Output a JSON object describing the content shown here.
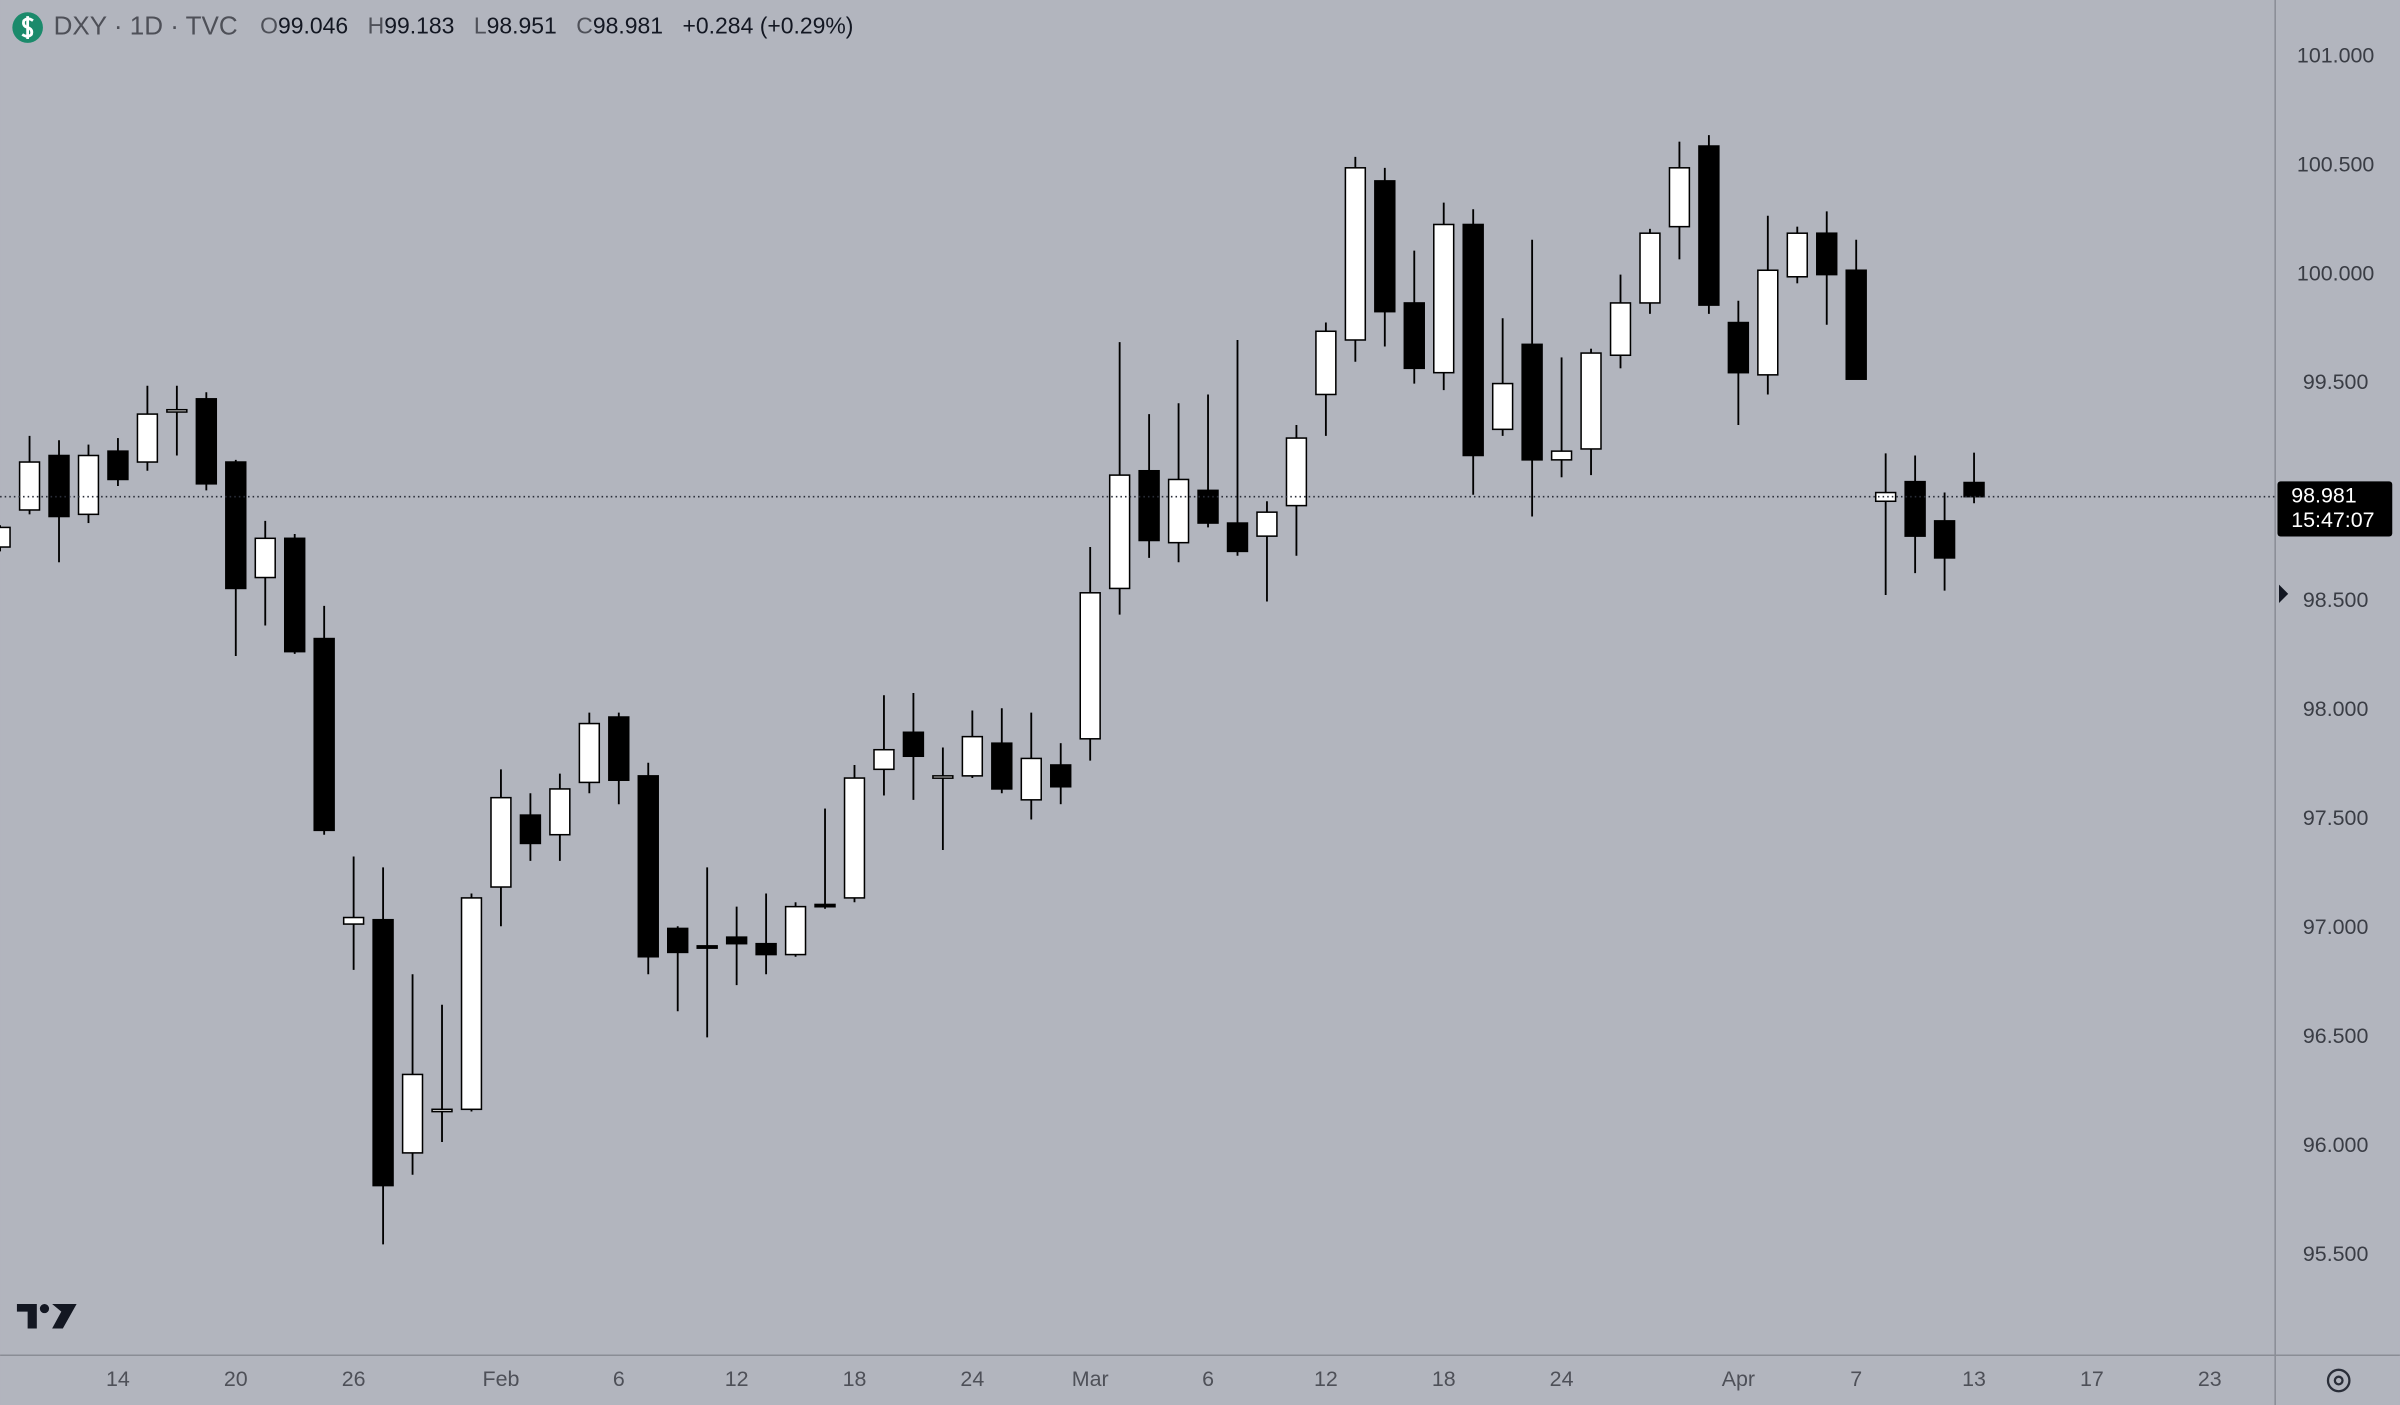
{
  "chart_data": {
    "type": "candlestick",
    "header": "DXY · 1D · TVC",
    "ohlc_labels": [
      "O",
      "H",
      "L",
      "C"
    ],
    "change": "+0.284 (+0.29%)",
    "countdown": "15:47:07",
    "up_color": "#ffffff",
    "down_color": "#000000",
    "wick_color": "#000000",
    "grid": false,
    "categories": [
      null,
      null,
      null,
      null,
      "14",
      null,
      null,
      null,
      "20",
      null,
      null,
      null,
      "26",
      null,
      null,
      null,
      null,
      "Feb",
      null,
      null,
      null,
      "6",
      null,
      null,
      null,
      "12",
      null,
      null,
      null,
      "18",
      null,
      null,
      null,
      "24",
      null,
      null,
      null,
      "Mar",
      null,
      null,
      null,
      "6",
      null,
      null,
      null,
      "12",
      null,
      null,
      null,
      "18",
      null,
      null,
      null,
      "24",
      null,
      null,
      null,
      null,
      null,
      "Apr",
      null,
      null,
      null,
      "7",
      null,
      null,
      null,
      "13",
      null,
      null,
      null,
      "17",
      null,
      null,
      null,
      "23"
    ],
    "open": [
      98.75,
      98.92,
      99.17,
      98.9,
      99.19,
      99.14,
      99.38,
      99.43,
      99.14,
      98.61,
      98.79,
      98.33,
      97.02,
      97.04,
      95.97,
      96.16,
      96.17,
      97.19,
      97.52,
      97.43,
      97.67,
      97.97,
      97.7,
      97.0,
      96.92,
      96.96,
      96.93,
      96.88,
      97.11,
      97.14,
      97.73,
      97.9,
      97.7,
      97.7,
      97.85,
      97.59,
      97.75,
      97.87,
      98.56,
      99.1,
      98.77,
      99.01,
      98.86,
      98.8,
      98.94,
      99.45,
      99.7,
      100.43,
      99.87,
      99.55,
      100.23,
      99.29,
      99.68,
      99.15,
      99.2,
      99.63,
      99.87,
      100.22,
      100.59,
      99.78,
      99.54,
      99.99,
      100.19,
      100.02,
      98.96,
      99.05,
      98.87,
      99.046,
      null,
      null,
      null,
      null,
      null,
      null,
      null,
      null
    ],
    "high": [
      98.85,
      99.26,
      99.24,
      99.22,
      99.25,
      99.49,
      99.49,
      99.46,
      99.15,
      98.87,
      98.81,
      98.48,
      97.33,
      97.28,
      96.79,
      96.65,
      97.16,
      97.73,
      97.62,
      97.71,
      97.99,
      97.99,
      97.76,
      97.01,
      97.28,
      97.1,
      97.16,
      97.12,
      97.55,
      97.75,
      98.07,
      98.08,
      97.83,
      98.0,
      98.01,
      97.99,
      97.85,
      98.75,
      99.69,
      99.36,
      99.41,
      99.45,
      99.7,
      98.96,
      99.31,
      99.78,
      100.54,
      100.49,
      100.11,
      100.33,
      100.3,
      99.8,
      100.16,
      99.62,
      99.66,
      100.0,
      100.21,
      100.61,
      100.64,
      99.88,
      100.27,
      100.22,
      100.29,
      100.16,
      99.18,
      99.17,
      99.0,
      99.183,
      null,
      null,
      null,
      null,
      null,
      null,
      null,
      null
    ],
    "low": [
      98.73,
      98.9,
      98.68,
      98.86,
      99.03,
      99.1,
      99.17,
      99.01,
      98.25,
      98.39,
      98.26,
      97.43,
      96.81,
      95.55,
      95.87,
      96.02,
      96.16,
      97.01,
      97.31,
      97.31,
      97.62,
      97.57,
      96.79,
      96.62,
      96.5,
      96.74,
      96.79,
      96.87,
      97.09,
      97.12,
      97.61,
      97.59,
      97.36,
      97.69,
      97.62,
      97.5,
      97.57,
      97.77,
      98.44,
      98.7,
      98.68,
      98.84,
      98.71,
      98.5,
      98.71,
      99.26,
      99.6,
      99.67,
      99.5,
      99.47,
      98.99,
      99.26,
      98.89,
      99.07,
      99.08,
      99.57,
      99.82,
      100.07,
      99.82,
      99.31,
      99.45,
      99.96,
      99.77,
      99.52,
      98.53,
      98.63,
      98.55,
      98.951,
      null,
      null,
      null,
      null,
      null,
      null,
      null,
      null
    ],
    "close": [
      98.84,
      99.14,
      98.89,
      99.17,
      99.06,
      99.36,
      99.38,
      99.04,
      98.56,
      98.79,
      98.27,
      97.45,
      97.05,
      95.82,
      96.33,
      96.17,
      97.14,
      97.6,
      97.39,
      97.64,
      97.94,
      97.68,
      96.87,
      96.89,
      96.91,
      96.93,
      96.88,
      97.1,
      97.1,
      97.69,
      97.82,
      97.79,
      97.7,
      97.88,
      97.64,
      97.78,
      97.65,
      98.54,
      99.08,
      98.78,
      99.06,
      98.86,
      98.73,
      98.91,
      99.25,
      99.74,
      100.49,
      99.83,
      99.57,
      100.23,
      99.17,
      99.5,
      99.15,
      99.19,
      99.64,
      99.87,
      100.19,
      100.49,
      99.86,
      99.55,
      100.02,
      100.19,
      100.0,
      99.52,
      99.0,
      98.8,
      98.7,
      98.981,
      null,
      null,
      null,
      null,
      null,
      null,
      null,
      null
    ],
    "ylim": [
      95.045,
      101.26
    ],
    "yticks": [
      {
        "value": 95.5,
        "label": "95.500"
      },
      {
        "value": 96,
        "label": "96.000"
      },
      {
        "value": 96.5,
        "label": "96.500"
      },
      {
        "value": 97,
        "label": "97.000"
      },
      {
        "value": 97.5,
        "label": "97.500"
      },
      {
        "value": 98,
        "label": "98.000"
      },
      {
        "value": 98.5,
        "label": "98.500"
      },
      {
        "value": 99,
        "label": "99.000"
      },
      {
        "value": 99.5,
        "label": "99.500"
      },
      {
        "value": 100,
        "label": "100.000"
      },
      {
        "value": 100.5,
        "label": "100.500"
      },
      {
        "value": 101,
        "label": "101.000"
      }
    ]
  }
}
